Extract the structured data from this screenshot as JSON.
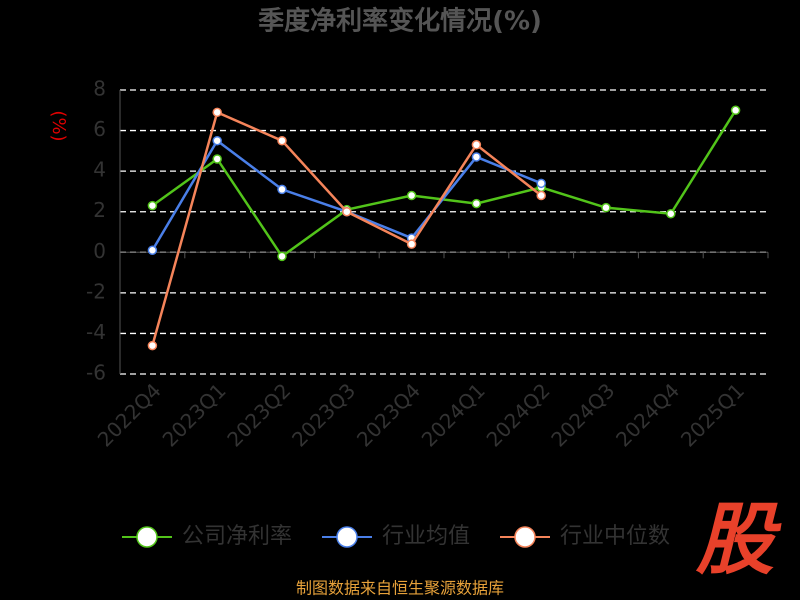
{
  "chart_data": {
    "type": "line",
    "title": "季度净利率变化情况(%)",
    "y_label": "(%)",
    "categories": [
      "2022Q4",
      "2023Q1",
      "2023Q2",
      "2023Q3",
      "2023Q4",
      "2024Q1",
      "2024Q2",
      "2024Q3",
      "2024Q4",
      "2025Q1"
    ],
    "series": [
      {
        "name": "公司净利率",
        "color": "#52c41a",
        "values": [
          2.3,
          4.6,
          -0.2,
          2.1,
          2.8,
          2.4,
          3.2,
          2.2,
          1.9,
          7.0
        ]
      },
      {
        "name": "行业均值",
        "color": "#4a7fe8",
        "values": [
          0.1,
          5.5,
          3.1,
          2.0,
          0.7,
          4.7,
          3.4,
          null,
          null,
          null
        ]
      },
      {
        "name": "行业中位数",
        "color": "#f5845a",
        "values": [
          -4.6,
          6.9,
          5.5,
          2.0,
          0.4,
          5.3,
          2.8,
          null,
          null,
          null
        ]
      }
    ],
    "ylim": [
      -6,
      8
    ],
    "yticks": [
      -6,
      -4,
      -2,
      0,
      2,
      4,
      6,
      8
    ],
    "grid": true,
    "source": "制图数据来自恒生聚源数据库",
    "logo": "股"
  }
}
